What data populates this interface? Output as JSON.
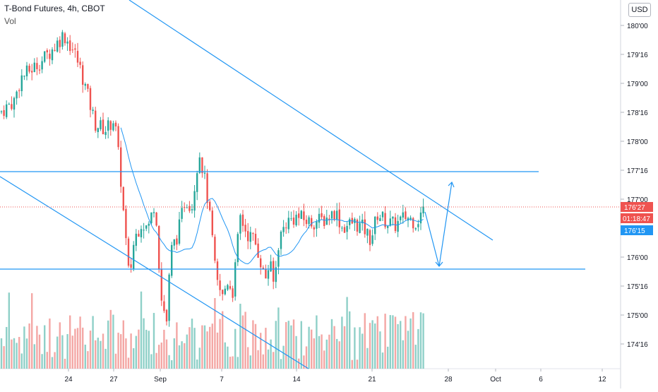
{
  "header": {
    "title": "T-Bond Futures, 4h, CBOT",
    "volume_label": "Vol"
  },
  "currency_button": "USD",
  "price_tags": {
    "last_price": "176'27",
    "countdown": "01:18:47",
    "ma_price": "176'15"
  },
  "colors": {
    "up": "#26a69a",
    "down": "#ef5350",
    "up_volume": "#8fd0c8",
    "down_volume": "#f4a7a5",
    "line": "#2196f3",
    "ma": "#2196f3",
    "last_tag": "#ef5350",
    "ma_tag": "#2196f3"
  },
  "chart_data": {
    "type": "candlestick",
    "title": "T-Bond Futures, 4h, CBOT",
    "y_axis": {
      "ticks": [
        "180'00",
        "179'16",
        "179'00",
        "178'16",
        "178'00",
        "177'16",
        "177'00",
        "176'00",
        "175'16",
        "175'00",
        "174'16"
      ],
      "range": [
        174.25,
        180.25
      ],
      "scale": "linear"
    },
    "x_axis": {
      "ticks": [
        "24",
        "27",
        "Sep",
        "7",
        "14",
        "21",
        "28",
        "Oct",
        "6",
        "12"
      ]
    },
    "annotations": {
      "horizontal_levels": [
        177.1,
        175.92
      ],
      "last_price": 176.84,
      "ma_level": 176.47
    }
  }
}
